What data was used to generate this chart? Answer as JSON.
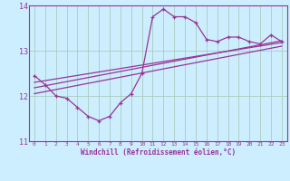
{
  "xlabel": "Windchill (Refroidissement éolien,°C)",
  "background_color": "#cceeff",
  "line_color": "#993399",
  "grid_color": "#aaccbb",
  "xlim": [
    -0.5,
    23.5
  ],
  "ylim": [
    11,
    14
  ],
  "yticks": [
    11,
    12,
    13,
    14
  ],
  "xticks": [
    0,
    1,
    2,
    3,
    4,
    5,
    6,
    7,
    8,
    9,
    10,
    11,
    12,
    13,
    14,
    15,
    16,
    17,
    18,
    19,
    20,
    21,
    22,
    23
  ],
  "curve1_x": [
    0,
    1,
    2,
    3,
    4,
    5,
    6,
    7,
    8,
    9,
    10,
    11,
    12,
    13,
    14,
    15,
    16,
    17,
    18,
    19,
    20,
    21,
    22,
    23
  ],
  "curve1_y": [
    12.45,
    12.25,
    12.0,
    11.95,
    11.75,
    11.55,
    11.45,
    11.55,
    11.85,
    12.05,
    12.5,
    13.75,
    13.92,
    13.75,
    13.75,
    13.62,
    13.25,
    13.2,
    13.3,
    13.3,
    13.2,
    13.15,
    13.35,
    13.2
  ],
  "line1_x": [
    0,
    23
  ],
  "line1_y": [
    12.05,
    13.1
  ],
  "line2_x": [
    0,
    23
  ],
  "line2_y": [
    12.18,
    13.22
  ],
  "line3_x": [
    0,
    23
  ],
  "line3_y": [
    12.3,
    13.18
  ]
}
